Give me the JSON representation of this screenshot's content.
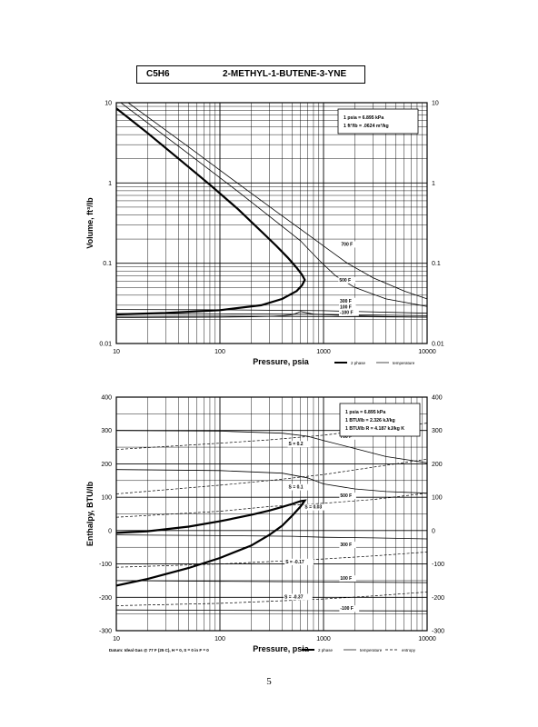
{
  "header": {
    "formula": "C5H6",
    "name": "2-METHYL-1-BUTENE-3-YNE"
  },
  "page_number": "5",
  "chart_data": [
    {
      "type": "line",
      "x_scale": "log",
      "y_scale": "log",
      "xlabel": "Pressure,  psia",
      "ylabel": "Volume, ft^3/lb",
      "xlim": [
        10,
        10000
      ],
      "ylim": [
        0.01,
        10
      ],
      "x_ticks": [
        "10",
        "100",
        "1000",
        "10000"
      ],
      "y_ticks": [
        "0.01",
        "0.1",
        "1",
        "10"
      ],
      "grid": true,
      "conversions": [
        "1 psia  =  6.895 kPa",
        "1 ft^3/lb  =  .0624 m^3/kg"
      ],
      "legend": {
        "placement": "bottom-right",
        "entries": [
          "2 phase",
          "temperature"
        ]
      },
      "series": [
        {
          "kind": "2 phase",
          "x": [
            10,
            20,
            40,
            80,
            150,
            250,
            350,
            450,
            550,
            620,
            660,
            620,
            550,
            400,
            250,
            100,
            30,
            10
          ],
          "y": [
            8.5,
            4.2,
            2.0,
            0.95,
            0.47,
            0.25,
            0.165,
            0.118,
            0.088,
            0.072,
            0.062,
            0.053,
            0.045,
            0.036,
            0.03,
            0.026,
            0.024,
            0.023
          ]
        },
        {
          "kind": "temperature",
          "label": "",
          "x": [
            10,
            30,
            100,
            200,
            300,
            400,
            470,
            520,
            600,
            800,
            1500,
            5000,
            10000
          ],
          "y": [
            0.021,
            0.0212,
            0.0213,
            0.0215,
            0.0218,
            0.0222,
            0.0226,
            0.0232,
            0.025,
            0.0232,
            0.0224,
            0.0216,
            0.0213
          ]
        },
        {
          "kind": "temperature",
          "label": "-100 F",
          "x": [
            10,
            100,
            1000,
            10000
          ],
          "y": [
            0.0218,
            0.0219,
            0.0217,
            0.0213
          ]
        },
        {
          "kind": "temperature",
          "label": "100 F",
          "x": [
            10,
            100,
            1000,
            10000
          ],
          "y": [
            0.0235,
            0.0234,
            0.0231,
            0.0222
          ]
        },
        {
          "kind": "temperature",
          "label": "300 F",
          "x": [
            10,
            100,
            1000,
            10000
          ],
          "y": [
            0.0265,
            0.0263,
            0.0256,
            0.0238
          ]
        },
        {
          "kind": "temperature",
          "label": "500 F",
          "x": [
            10,
            50,
            150,
            350,
            600,
            900,
            1300,
            2000,
            4000,
            10000
          ],
          "y": [
            11,
            2.3,
            0.78,
            0.33,
            0.19,
            0.11,
            0.07,
            0.05,
            0.036,
            0.029
          ]
        },
        {
          "kind": "temperature",
          "label": "700 F",
          "x": [
            13,
            50,
            150,
            350,
            700,
            1100,
            1700,
            3000,
            6000,
            10000
          ],
          "y": [
            10,
            2.8,
            0.98,
            0.44,
            0.23,
            0.15,
            0.1,
            0.066,
            0.045,
            0.036
          ]
        }
      ]
    },
    {
      "type": "line",
      "x_scale": "log",
      "y_scale": "linear",
      "xlabel": "Pressure,  psia",
      "ylabel": "Enthalpy, BTU/lb",
      "xlim": [
        10,
        10000
      ],
      "ylim": [
        -300,
        400
      ],
      "x_ticks": [
        "10",
        "100",
        "1000",
        "10000"
      ],
      "y_ticks": [
        "-300",
        "-200",
        "-100",
        "0",
        "100",
        "200",
        "300",
        "400"
      ],
      "grid": true,
      "conversions": [
        "1 psia  =  6.895 kPa",
        "1 BTU/lb  =  2.326 kJ/kg",
        "1 BTU/lb R  =  4.187 kJ/kg K"
      ],
      "footnote": "Datum: Ideal Gas @ 77 F (25 C),  H = 0,  S = 0 in F = 0",
      "legend": {
        "placement": "bottom-right",
        "entries": [
          "2 phase",
          "temperature",
          "entropy"
        ]
      },
      "series": [
        {
          "kind": "2 phase",
          "x": [
            10,
            20,
            50,
            100,
            200,
            300,
            400,
            500,
            600,
            660,
            600,
            500,
            400,
            300,
            200,
            100,
            50,
            20,
            10
          ],
          "y": [
            -7,
            -2,
            12,
            28,
            47,
            60,
            71,
            80,
            88,
            90,
            72,
            45,
            15,
            -13,
            -45,
            -82,
            -112,
            -145,
            -165
          ]
        },
        {
          "kind": "temperature",
          "label": "700 F",
          "x": [
            10,
            100,
            400,
            700,
            1000,
            2000,
            4000,
            10000
          ],
          "y": [
            300,
            298,
            292,
            283,
            270,
            246,
            222,
            203
          ]
        },
        {
          "kind": "temperature",
          "label": "500 F",
          "x": [
            10,
            100,
            400,
            700,
            1000,
            2000,
            4000,
            10000
          ],
          "y": [
            183,
            180,
            172,
            158,
            140,
            125,
            117,
            112
          ]
        },
        {
          "kind": "temperature",
          "label": "300 F",
          "x": [
            10,
            100,
            500,
            1000,
            3000,
            10000
          ],
          "y": [
            -13,
            -15,
            -17,
            -20,
            -22,
            -25
          ]
        },
        {
          "kind": "temperature",
          "label": "100 F",
          "x": [
            10,
            100,
            1000,
            10000
          ],
          "y": [
            -150,
            -152,
            -154,
            -156
          ]
        },
        {
          "kind": "temperature",
          "label": "-100 F",
          "x": [
            10,
            100,
            1000,
            10000
          ],
          "y": [
            -238,
            -239,
            -240,
            -241
          ]
        },
        {
          "kind": "entropy",
          "label": "S = 0.2",
          "x": [
            10,
            100,
            300,
            1000,
            3000,
            10000
          ],
          "y": [
            243,
            262,
            272,
            286,
            304,
            322
          ]
        },
        {
          "kind": "entropy",
          "label": "S = 0.1",
          "x": [
            10,
            100,
            300,
            1000,
            3000,
            10000
          ],
          "y": [
            110,
            136,
            150,
            168,
            190,
            214
          ]
        },
        {
          "kind": "entropy",
          "label": "S = 0.03",
          "x": [
            10,
            100,
            300,
            1000,
            3000,
            10000
          ],
          "y": [
            40,
            58,
            72,
            82,
            93,
            112
          ]
        },
        {
          "kind": "entropy",
          "label": "S = -0.17",
          "x": [
            10,
            100,
            300,
            1000,
            3000,
            10000
          ],
          "y": [
            -110,
            -100,
            -93,
            -85,
            -76,
            -64
          ]
        },
        {
          "kind": "entropy",
          "label": "S = -0.37",
          "x": [
            10,
            100,
            300,
            1000,
            3000,
            10000
          ],
          "y": [
            -225,
            -218,
            -212,
            -205,
            -196,
            -184
          ]
        }
      ]
    }
  ]
}
